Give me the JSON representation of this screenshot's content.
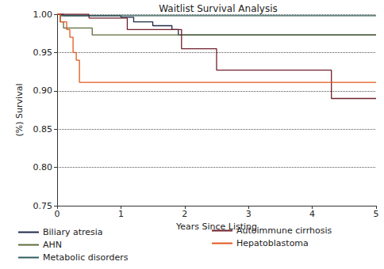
{
  "chart_data": {
    "type": "line",
    "title": "Waitlist Survival Analysis",
    "x_label": "Years Since Listing",
    "y_label": "(%) Survival",
    "xlim": [
      0,
      5
    ],
    "xticks": [
      0,
      1,
      2,
      3,
      4,
      5
    ],
    "ylim": [
      0.75,
      1.0
    ],
    "yticks": [
      {
        "value": 0.75,
        "label": "0.75"
      },
      {
        "value": 0.8,
        "label": "0.80"
      },
      {
        "value": 0.85,
        "label": "0.85"
      },
      {
        "value": 0.9,
        "label": "0.90"
      },
      {
        "value": 0.95,
        "label": "0.95"
      },
      {
        "value": 1.0,
        "label": "1.00"
      }
    ],
    "grid": true,
    "legend": "bottom",
    "line_style": "step",
    "series": [
      {
        "name": "Biliary atresia",
        "color": "#1c2b4a",
        "x": [
          0,
          0.05,
          1.0,
          1.2,
          1.5,
          1.8,
          1.9,
          5
        ],
        "values": [
          1.0,
          0.998,
          0.996,
          0.99,
          0.985,
          0.98,
          0.973,
          0.973
        ]
      },
      {
        "name": "AHN",
        "color": "#5b6b3a",
        "x": [
          0,
          0.05,
          0.1,
          0.55,
          5
        ],
        "values": [
          1.0,
          0.99,
          0.982,
          0.973,
          0.973
        ]
      },
      {
        "name": "Metabolic disorders",
        "color": "#2f5d5a",
        "x": [
          0,
          0.1,
          5
        ],
        "values": [
          1.0,
          0.998,
          0.998
        ]
      },
      {
        "name": "Autoimmune cirrhosis",
        "color": "#6e1f2c",
        "x": [
          0,
          0.5,
          1.1,
          1.95,
          2.5,
          4.3,
          5
        ],
        "values": [
          1.0,
          0.995,
          0.98,
          0.955,
          0.927,
          0.89,
          0.89
        ]
      },
      {
        "name": "Hepatoblastoma",
        "color": "#e2581c",
        "x": [
          0,
          0.05,
          0.15,
          0.2,
          0.25,
          0.3,
          0.35,
          5
        ],
        "values": [
          1.0,
          0.99,
          0.98,
          0.97,
          0.95,
          0.94,
          0.911,
          0.911
        ]
      }
    ]
  }
}
